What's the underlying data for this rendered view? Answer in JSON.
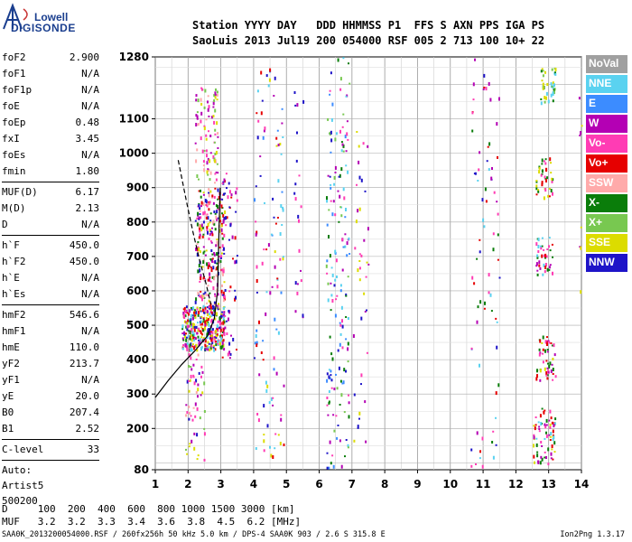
{
  "logo": {
    "line1": "Lowell",
    "line2": "DIGISONDE"
  },
  "header": {
    "line1": "Station YYYY DAY   DDD HHMMSS P1  FFS S AXN PPS IGA PS",
    "line2": "SaoLuis 2013 Jul19 200 054000 RSF 005 2 713 100 10+ 22"
  },
  "params": {
    "group1": [
      {
        "k": "foF2",
        "v": "2.900"
      },
      {
        "k": "foF1",
        "v": "N/A"
      },
      {
        "k": "foF1p",
        "v": "N/A"
      },
      {
        "k": "foE",
        "v": "N/A"
      },
      {
        "k": "foEp",
        "v": "0.48"
      },
      {
        "k": "fxI",
        "v": "3.45"
      },
      {
        "k": "foEs",
        "v": "N/A"
      },
      {
        "k": "fmin",
        "v": "1.80"
      }
    ],
    "group2": [
      {
        "k": "MUF(D)",
        "v": "6.17"
      },
      {
        "k": "M(D)",
        "v": "2.13"
      },
      {
        "k": "D",
        "v": "N/A"
      }
    ],
    "group3": [
      {
        "k": "h`F",
        "v": "450.0"
      },
      {
        "k": "h`F2",
        "v": "450.0"
      },
      {
        "k": "h`E",
        "v": "N/A"
      },
      {
        "k": "h`Es",
        "v": "N/A"
      }
    ],
    "group4": [
      {
        "k": "hmF2",
        "v": "546.6"
      },
      {
        "k": "hmF1",
        "v": "N/A"
      },
      {
        "k": "hmE",
        "v": "110.0"
      },
      {
        "k": "yF2",
        "v": "213.7"
      },
      {
        "k": "yF1",
        "v": "N/A"
      },
      {
        "k": "yE",
        "v": "20.0"
      },
      {
        "k": "B0",
        "v": "207.4"
      },
      {
        "k": "B1",
        "v": "2.52"
      }
    ],
    "group5": [
      {
        "k": "C-level",
        "v": "33"
      }
    ],
    "auto": [
      "Auto:",
      "Artist5",
      "500200"
    ]
  },
  "legend": [
    {
      "label": "NoVal",
      "color": "#a0a0a0"
    },
    {
      "label": "NNE",
      "color": "#5ad2f0"
    },
    {
      "label": "E",
      "color": "#3c8cff"
    },
    {
      "label": "W",
      "color": "#b400b4"
    },
    {
      "label": "Vo-",
      "color": "#ff3cb4"
    },
    {
      "label": "Vo+",
      "color": "#e60000"
    },
    {
      "label": "SSW",
      "color": "#ffaaaa"
    },
    {
      "label": "X-",
      "color": "#0a7d0a"
    },
    {
      "label": "X+",
      "color": "#78c850"
    },
    {
      "label": "SSE",
      "color": "#dcdc00"
    },
    {
      "label": "NNW",
      "color": "#1e14c8"
    }
  ],
  "dmuf": {
    "line1": "D     100  200  400  600  800 1000 1500 3000 [km]",
    "line2": "MUF   3.2  3.2  3.3  3.4  3.6  3.8  4.5  6.2 [MHz]"
  },
  "footer": {
    "left": "SAA0K_2013200054000.RSF / 260fx256h 50 kHz 5.0 km / DPS-4 SAA0K 903 / 2.6 S 315.8 E",
    "right": "Ion2Png 1.3.17"
  },
  "chart_data": {
    "type": "scatter",
    "xlim": [
      1,
      14
    ],
    "ylim": [
      80,
      1280
    ],
    "xticks": [
      1,
      2,
      3,
      4,
      5,
      6,
      7,
      8,
      9,
      10,
      11,
      12,
      13,
      14
    ],
    "yticks": [
      80,
      200,
      300,
      400,
      500,
      600,
      700,
      800,
      900,
      1000,
      1100,
      1280
    ],
    "xlabel": "",
    "ylabel": "",
    "grid": true,
    "profile_curve": [
      [
        1.0,
        290
      ],
      [
        1.4,
        340
      ],
      [
        1.8,
        385
      ],
      [
        2.2,
        425
      ],
      [
        2.6,
        470
      ],
      [
        2.8,
        520
      ],
      [
        2.9,
        600
      ],
      [
        2.95,
        800
      ],
      [
        2.98,
        900
      ]
    ],
    "dashed_curve": [
      [
        1.7,
        980
      ],
      [
        1.95,
        860
      ],
      [
        2.15,
        770
      ],
      [
        2.35,
        690
      ],
      [
        2.55,
        620
      ],
      [
        2.7,
        560
      ]
    ],
    "clusters": [
      {
        "x": [
          1.8,
          3.1
        ],
        "y": [
          430,
          560
        ],
        "n": 340,
        "colors": [
          "#e60000",
          "#ff3cb4",
          "#b400b4",
          "#0a7d0a",
          "#dcdc00",
          "#1e14c8",
          "#5ad2f0"
        ]
      },
      {
        "x": [
          2.2,
          3.1
        ],
        "y": [
          550,
          900
        ],
        "n": 260,
        "colors": [
          "#e60000",
          "#ff3cb4",
          "#b400b4",
          "#0a7d0a",
          "#dcdc00",
          "#1e14c8",
          "#ffaaaa"
        ]
      },
      {
        "x": [
          2.2,
          2.9
        ],
        "y": [
          900,
          1200
        ],
        "n": 90,
        "colors": [
          "#dcdc00",
          "#ffaaaa",
          "#ff3cb4",
          "#78c850",
          "#b400b4"
        ]
      },
      {
        "x": [
          1.9,
          2.5
        ],
        "y": [
          110,
          420
        ],
        "n": 55,
        "colors": [
          "#1e14c8",
          "#ffaaaa",
          "#b400b4",
          "#ff3cb4",
          "#dcdc00",
          "#78c850"
        ]
      },
      {
        "x": [
          3.0,
          3.5
        ],
        "y": [
          400,
          950
        ],
        "n": 60,
        "colors": [
          "#1e14c8",
          "#b400b4",
          "#ff3cb4",
          "#e60000"
        ]
      },
      {
        "x": [
          4.0,
          4.9
        ],
        "y": [
          90,
          1250
        ],
        "n": 110,
        "colors": [
          "#1e14c8",
          "#b400b4",
          "#ff3cb4",
          "#5ad2f0",
          "#3c8cff",
          "#dcdc00",
          "#e60000"
        ]
      },
      {
        "x": [
          5.2,
          5.5
        ],
        "y": [
          500,
          1200
        ],
        "n": 22,
        "colors": [
          "#1e14c8",
          "#b400b4",
          "#ff3cb4"
        ]
      },
      {
        "x": [
          6.2,
          6.9
        ],
        "y": [
          85,
          1280
        ],
        "n": 170,
        "colors": [
          "#5ad2f0",
          "#3c8cff",
          "#0a7d0a",
          "#1e14c8",
          "#b400b4",
          "#78c850",
          "#ff3cb4"
        ]
      },
      {
        "x": [
          7.0,
          7.5
        ],
        "y": [
          100,
          1080
        ],
        "n": 40,
        "colors": [
          "#ff3cb4",
          "#b400b4",
          "#1e14c8",
          "#dcdc00"
        ]
      },
      {
        "x": [
          10.6,
          11.5
        ],
        "y": [
          90,
          1280
        ],
        "n": 75,
        "colors": [
          "#b400b4",
          "#e60000",
          "#5ad2f0",
          "#0a7d0a",
          "#1e14c8",
          "#ff3cb4"
        ]
      },
      {
        "x": [
          12.5,
          13.2
        ],
        "y": [
          100,
          260
        ],
        "n": 70,
        "colors": [
          "#e60000",
          "#ff3cb4",
          "#b400b4",
          "#0a7d0a",
          "#5ad2f0",
          "#dcdc00"
        ]
      },
      {
        "x": [
          12.6,
          13.2
        ],
        "y": [
          340,
          470
        ],
        "n": 50,
        "colors": [
          "#e60000",
          "#b400b4",
          "#dcdc00",
          "#0a7d0a",
          "#ff3cb4"
        ]
      },
      {
        "x": [
          12.6,
          13.1
        ],
        "y": [
          650,
          760
        ],
        "n": 40,
        "colors": [
          "#e60000",
          "#ff3cb4",
          "#5ad2f0",
          "#b400b4",
          "#0a7d0a"
        ]
      },
      {
        "x": [
          12.6,
          13.1
        ],
        "y": [
          870,
          990
        ],
        "n": 40,
        "colors": [
          "#0a7d0a",
          "#dcdc00",
          "#e60000",
          "#ff3cb4"
        ]
      },
      {
        "x": [
          12.7,
          13.2
        ],
        "y": [
          1150,
          1250
        ],
        "n": 40,
        "colors": [
          "#0a7d0a",
          "#5ad2f0",
          "#78c850",
          "#dcdc00"
        ]
      },
      {
        "x": [
          13.9,
          14.0
        ],
        "y": [
          450,
          1280
        ],
        "n": 8,
        "colors": [
          "#dcdc00",
          "#b400b4"
        ]
      }
    ]
  }
}
